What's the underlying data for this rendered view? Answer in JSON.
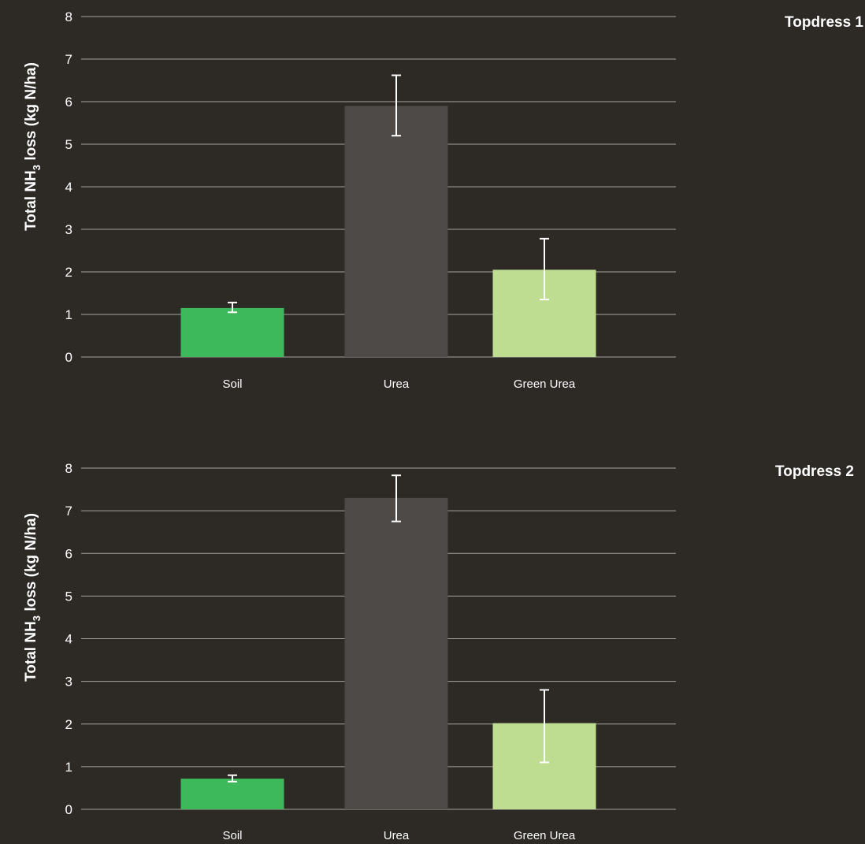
{
  "chart_data": [
    {
      "type": "bar",
      "title": "Topdress 1",
      "ylabel_pre": "Total NH",
      "ylabel_sub": "3",
      "ylabel_post": " loss (kg N/ha)",
      "ylim": [
        0,
        8
      ],
      "yticks": [
        0,
        1,
        2,
        3,
        4,
        5,
        6,
        7,
        8
      ],
      "grid": true,
      "categories": [
        "Soil",
        "Urea",
        "Green Urea"
      ],
      "values": [
        1.15,
        5.9,
        2.05
      ],
      "error_low": [
        1.05,
        5.2,
        1.35
      ],
      "error_high": [
        1.28,
        6.62,
        2.78
      ],
      "colors": [
        "#3db85a",
        "#4d4a47",
        "#bfdd91"
      ]
    },
    {
      "type": "bar",
      "title": "Topdress 2",
      "ylabel_pre": "Total NH",
      "ylabel_sub": "3",
      "ylabel_post": " loss (kg N/ha)",
      "ylim": [
        0,
        8
      ],
      "yticks": [
        0,
        1,
        2,
        3,
        4,
        5,
        6,
        7,
        8
      ],
      "grid": true,
      "categories": [
        "Soil",
        "Urea",
        "Green Urea"
      ],
      "values": [
        0.72,
        7.3,
        2.02
      ],
      "error_low": [
        0.65,
        6.75,
        1.1
      ],
      "error_high": [
        0.8,
        7.83,
        2.8
      ],
      "colors": [
        "#3db85a",
        "#4d4a47",
        "#bfdd91"
      ]
    }
  ]
}
